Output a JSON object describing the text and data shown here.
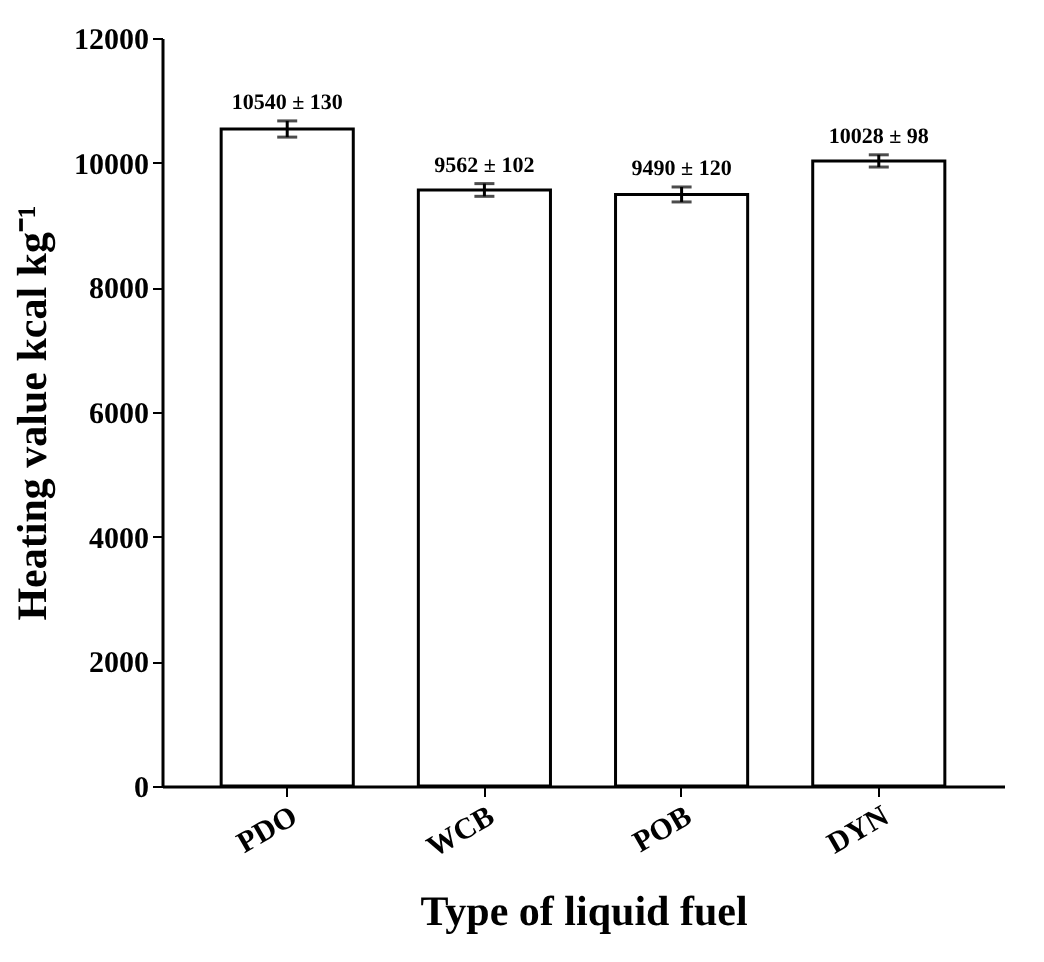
{
  "chart_data": {
    "type": "bar",
    "xlabel": "Type of liquid fuel",
    "ylabel": "Heating value  kcal kg⁻¹",
    "categories": [
      "PDO",
      "WCB",
      "POB",
      "DYN"
    ],
    "values": [
      10540,
      9562,
      9490,
      10028
    ],
    "errors": [
      130,
      102,
      120,
      98
    ],
    "value_labels": [
      "10540 ± 130",
      "9562 ± 102",
      "9490 ± 120",
      "10028 ± 98"
    ],
    "color": "#ffffff",
    "ylim": [
      0,
      12000
    ],
    "yticks": [
      0,
      2000,
      4000,
      6000,
      8000,
      10000,
      12000
    ],
    "grid": false
  }
}
